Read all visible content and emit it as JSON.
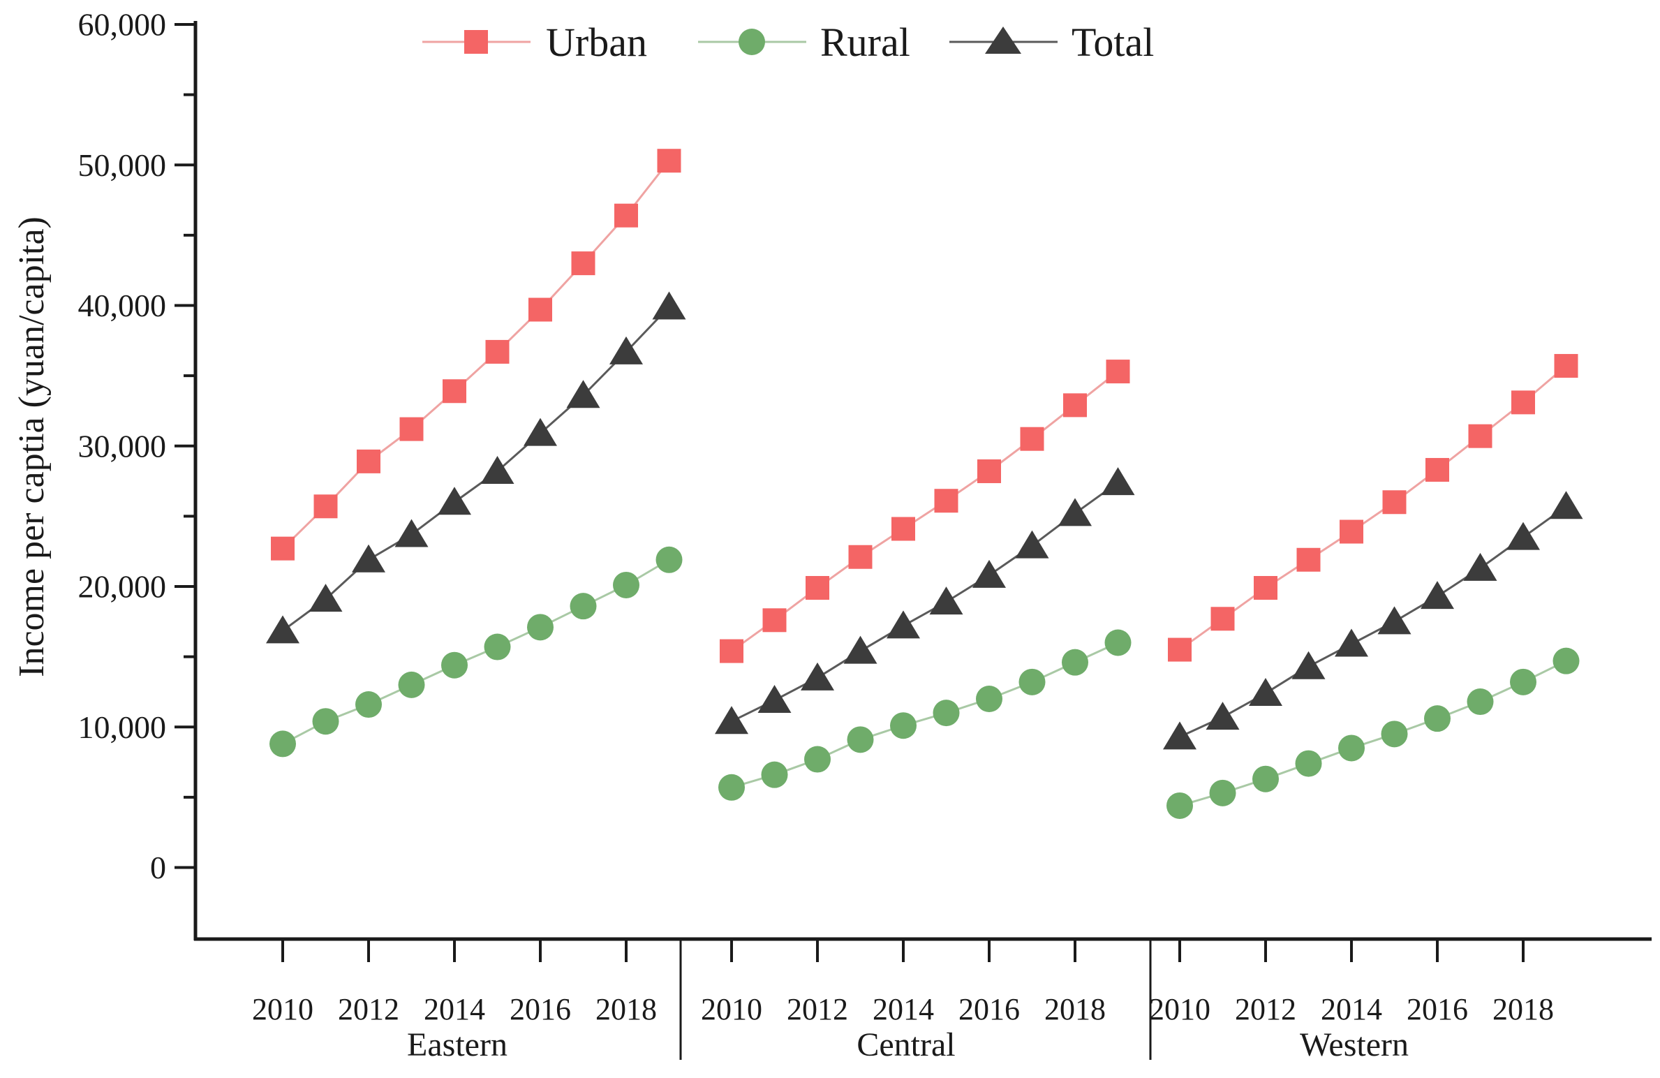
{
  "chart_data": {
    "type": "line",
    "title": "",
    "xlabel": "",
    "ylabel": "Income per captia (yuan/capita)",
    "ylim": [
      0,
      60000
    ],
    "grid": false,
    "legend_position": "top-center",
    "y_ticks": [
      {
        "value": 0,
        "label": "0"
      },
      {
        "value": 10000,
        "label": "10,000"
      },
      {
        "value": 20000,
        "label": "20,000"
      },
      {
        "value": 30000,
        "label": "30,000"
      },
      {
        "value": 40000,
        "label": "40,000"
      },
      {
        "value": 50000,
        "label": "50,000"
      },
      {
        "value": 60000,
        "label": "60,000"
      }
    ],
    "x": [
      2010,
      2011,
      2012,
      2013,
      2014,
      2015,
      2016,
      2017,
      2018,
      2019
    ],
    "x_tick_labels": [
      "2010",
      "2012",
      "2014",
      "2016",
      "2018"
    ],
    "legend": [
      {
        "name": "Urban",
        "marker": "square",
        "color": "#f46565",
        "line_color": "#efa3a2"
      },
      {
        "name": "Rural",
        "marker": "circle",
        "color": "#6fac6a",
        "line_color": "#a9c9a5"
      },
      {
        "name": "Total",
        "marker": "triangle",
        "color": "#3c3c3c",
        "line_color": "#5a5a5a"
      }
    ],
    "panels": [
      {
        "label": "Eastern",
        "series": [
          {
            "name": "Urban",
            "values": [
              22700,
              25700,
              28900,
              31200,
              33900,
              36700,
              39700,
              43000,
              46400,
              50300
            ]
          },
          {
            "name": "Rural",
            "values": [
              8800,
              10400,
              11600,
              13000,
              14400,
              15700,
              17100,
              18600,
              20100,
              21900
            ]
          },
          {
            "name": "Total",
            "values": [
              16850,
              19100,
              21900,
              23700,
              26000,
              28200,
              30900,
              33600,
              36700,
              39900
            ]
          }
        ]
      },
      {
        "label": "Central",
        "series": [
          {
            "name": "Urban",
            "values": [
              15400,
              17600,
              19900,
              22100,
              24100,
              26100,
              28200,
              30500,
              32900,
              35300
            ]
          },
          {
            "name": "Rural",
            "values": [
              5700,
              6600,
              7700,
              9100,
              10100,
              11000,
              12000,
              13200,
              14600,
              16000
            ]
          },
          {
            "name": "Total",
            "values": [
              10400,
              11900,
              13500,
              15400,
              17200,
              18900,
              20800,
              22900,
              25200,
              27400
            ]
          }
        ]
      },
      {
        "label": "Western",
        "series": [
          {
            "name": "Urban",
            "values": [
              15500,
              17700,
              19900,
              21900,
              23900,
              26000,
              28300,
              30700,
              33100,
              35700
            ]
          },
          {
            "name": "Rural",
            "values": [
              4400,
              5300,
              6300,
              7400,
              8500,
              9500,
              10600,
              11800,
              13200,
              14700
            ]
          },
          {
            "name": "Total",
            "values": [
              9300,
              10700,
              12400,
              14300,
              15900,
              17500,
              19300,
              21300,
              23500,
              25700
            ]
          }
        ]
      }
    ]
  }
}
